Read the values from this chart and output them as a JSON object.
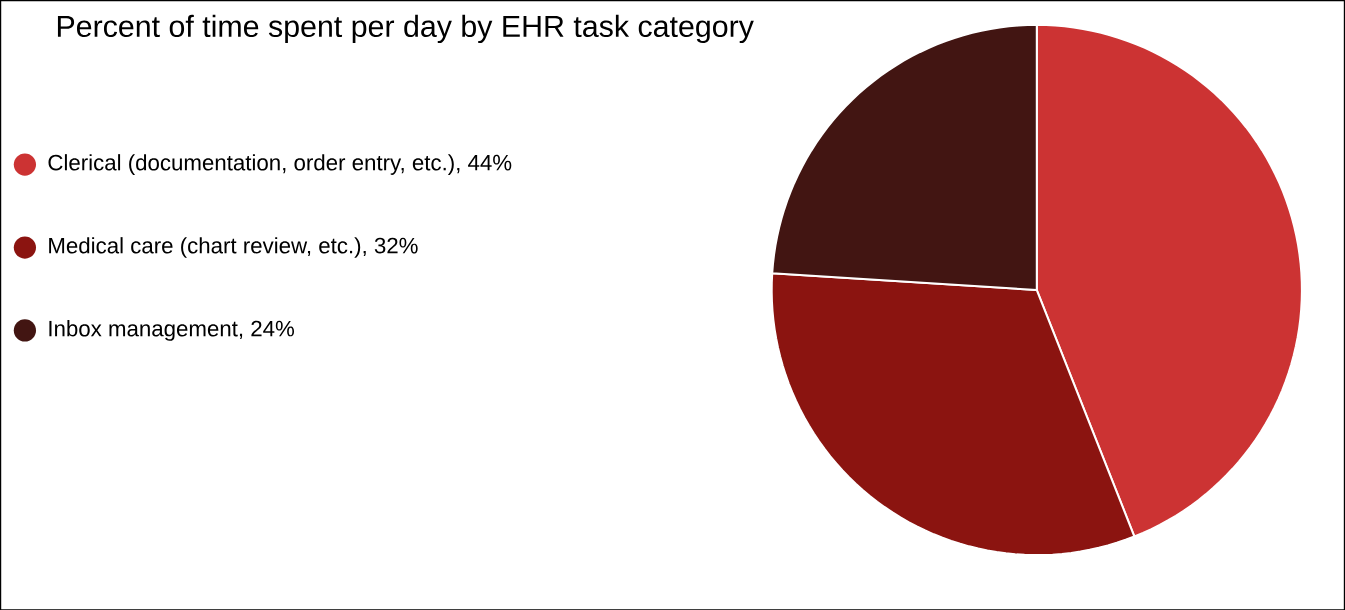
{
  "chart_data": {
    "type": "pie",
    "title": "Percent of time spent per day by EHR task category",
    "categories": [
      "Clerical (documentation, order entry, etc.), 44%",
      "Medical care (chart review, etc.), 32%",
      "Inbox management, 24%"
    ],
    "values": [
      44,
      32,
      24
    ],
    "colors": [
      "#cc3333",
      "#8b1410",
      "#421512"
    ],
    "legend": "left"
  }
}
